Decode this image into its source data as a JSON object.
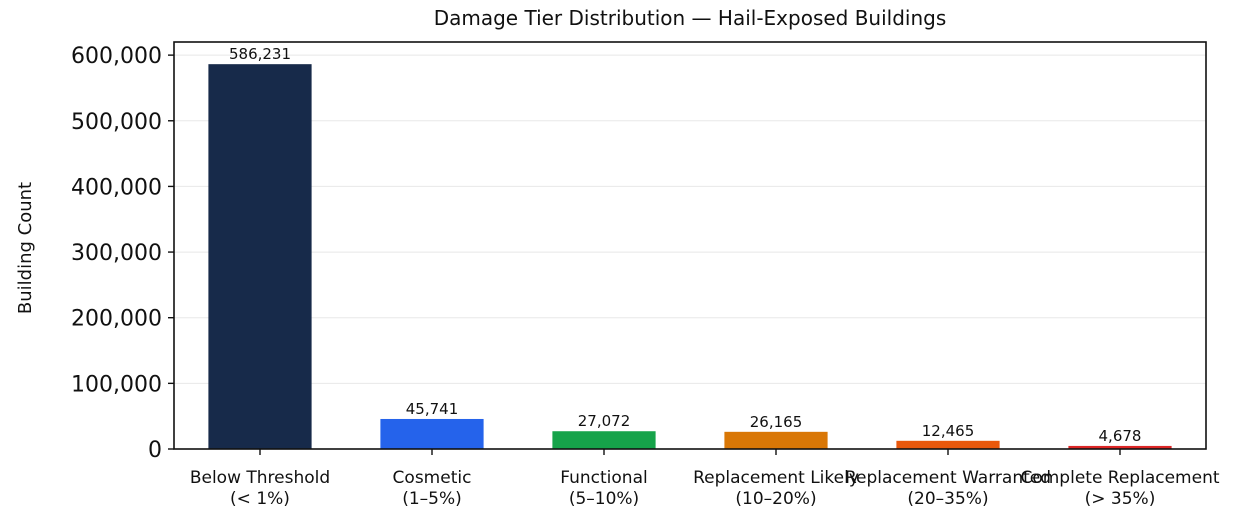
{
  "chart_data": {
    "type": "bar",
    "title": "Damage Tier Distribution — Hail-Exposed Buildings",
    "xlabel": "",
    "ylabel": "Building Count",
    "ylim": [
      0,
      620000
    ],
    "yticks": [
      0,
      100000,
      200000,
      300000,
      400000,
      500000,
      600000
    ],
    "ytick_labels": [
      "0",
      "100,000",
      "200,000",
      "300,000",
      "400,000",
      "500,000",
      "600,000"
    ],
    "grid": "horizontal",
    "categories": [
      [
        "Below Threshold",
        "(< 1%)"
      ],
      [
        "Cosmetic",
        "(1–5%)"
      ],
      [
        "Functional",
        "(5–10%)"
      ],
      [
        "Replacement Likely",
        "(10–20%)"
      ],
      [
        "Replacement Warranted",
        "(20–35%)"
      ],
      [
        "Complete Replacement",
        "(> 35%)"
      ]
    ],
    "values": [
      586231,
      45741,
      27072,
      26165,
      12465,
      4678
    ],
    "value_labels": [
      "586,231",
      "45,741",
      "27,072",
      "26,165",
      "12,465",
      "4,678"
    ],
    "colors": [
      "#172a4a",
      "#2563eb",
      "#16a34a",
      "#d97706",
      "#ea580c",
      "#dc2626"
    ]
  }
}
